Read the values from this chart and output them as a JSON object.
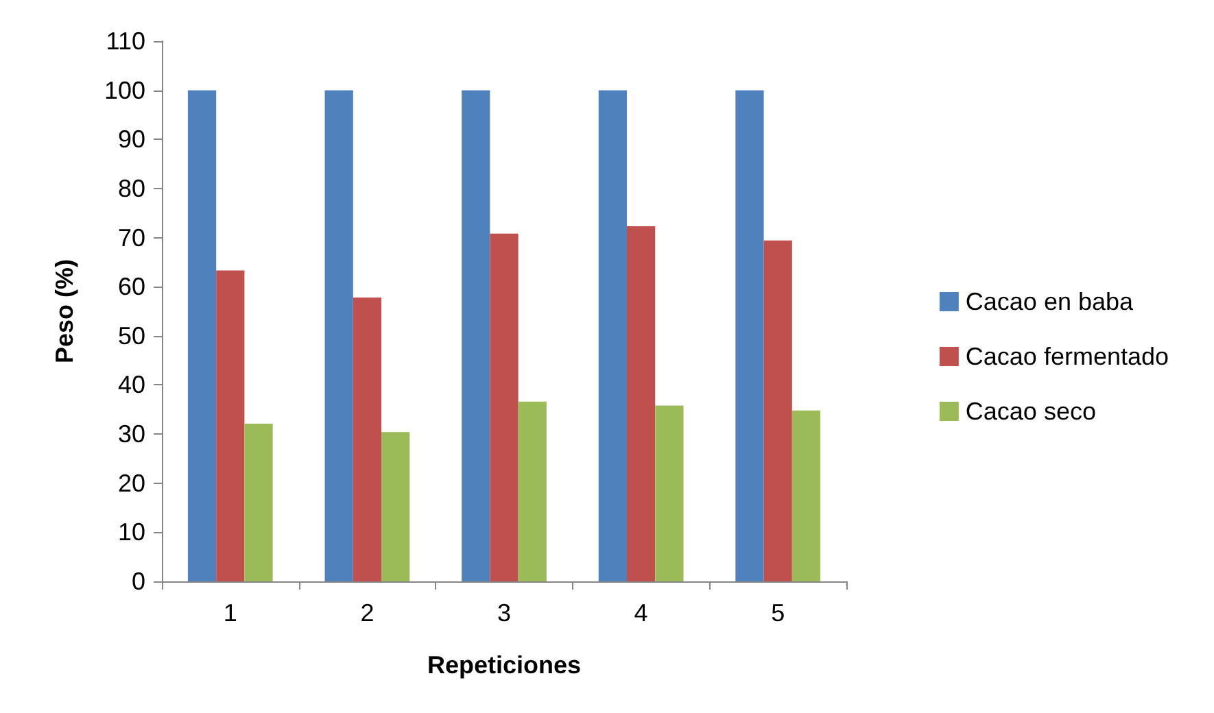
{
  "chart_data": {
    "type": "bar",
    "xlabel": "Repeticiones",
    "ylabel": "Peso (%)",
    "categories": [
      "1",
      "2",
      "3",
      "4",
      "5"
    ],
    "series": [
      {
        "name": "Cacao en baba",
        "color": "#4f81bd",
        "values": [
          100,
          100,
          100,
          100,
          100
        ]
      },
      {
        "name": "Cacao fermentado",
        "color": "#c0504d",
        "values": [
          63.3,
          57.8,
          70.8,
          72.3,
          69.4
        ]
      },
      {
        "name": "Cacao seco",
        "color": "#9bbb59",
        "values": [
          32.1,
          30.4,
          36.6,
          35.8,
          34.8
        ]
      }
    ],
    "ylim": [
      0,
      110
    ],
    "yticks": [
      0,
      10,
      20,
      30,
      40,
      50,
      60,
      70,
      80,
      90,
      100,
      110
    ],
    "grid": false,
    "legend": "right"
  }
}
